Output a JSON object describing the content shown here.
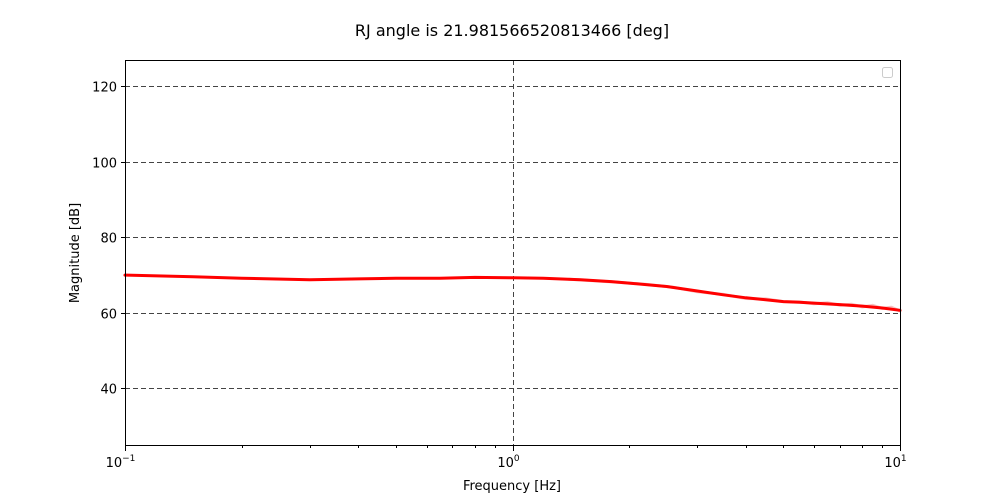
{
  "chart_data": {
    "type": "line",
    "title": "RJ angle is 21.981566520813466 [deg]",
    "xlabel": "Frequency [Hz]",
    "ylabel": "Magnitude [dB]",
    "xscale": "log",
    "xlim": [
      0.1,
      10
    ],
    "ylim": [
      25,
      127
    ],
    "x_ticks": [
      {
        "value": 0.1,
        "base": "10",
        "exp": "−1"
      },
      {
        "value": 1,
        "base": "10",
        "exp": "0"
      },
      {
        "value": 10,
        "base": "10",
        "exp": "1"
      }
    ],
    "y_ticks": [
      {
        "value": 40,
        "label": "40"
      },
      {
        "value": 60,
        "label": "60"
      },
      {
        "value": 80,
        "label": "80"
      },
      {
        "value": 100,
        "label": "100"
      },
      {
        "value": 120,
        "label": "120"
      }
    ],
    "grid": true,
    "legend": {
      "placement": "upper right",
      "entries": []
    },
    "series": [
      {
        "color": "#ff0000",
        "style": "smoothed",
        "x": [
          0.1,
          0.15,
          0.2,
          0.3,
          0.4,
          0.5,
          0.65,
          0.8,
          1.0,
          1.2,
          1.5,
          1.8,
          2.0,
          2.5,
          3.0,
          3.5,
          4.0,
          4.5,
          5.0,
          5.5,
          6.0,
          7.0,
          8.0,
          9.0,
          10.0
        ],
        "y": [
          70,
          69.6,
          69.2,
          68.8,
          69.0,
          69.2,
          69.2,
          69.4,
          69.3,
          69.2,
          68.8,
          68.3,
          67.9,
          67.0,
          65.8,
          64.8,
          64.0,
          63.5,
          63.0,
          62.8,
          62.6,
          62.2,
          61.8,
          61.3,
          60.7
        ]
      },
      {
        "color": "#f4b6b6",
        "style": "raw",
        "x": [
          1.4,
          1.8,
          2.2,
          2.6,
          3.0,
          3.5,
          4.0,
          4.5,
          5.0,
          5.5,
          6.0,
          6.5,
          7.0,
          7.5,
          8.0,
          8.5,
          9.0,
          9.5,
          10.0
        ],
        "y": [
          68.9,
          68.2,
          67.6,
          66.8,
          65.6,
          64.9,
          63.8,
          63.7,
          63.0,
          62.9,
          62.4,
          62.7,
          62.0,
          62.3,
          61.6,
          62.0,
          61.2,
          61.5,
          60.5
        ]
      }
    ]
  }
}
